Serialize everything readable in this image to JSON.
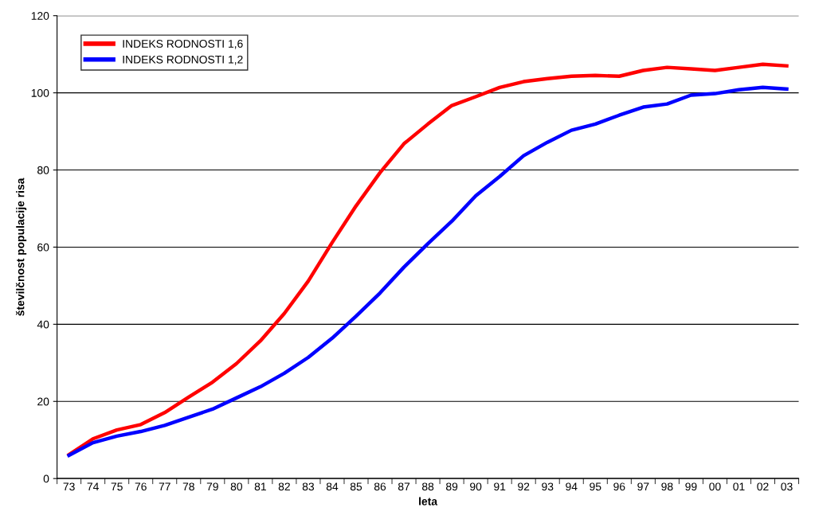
{
  "chart_data": {
    "type": "line",
    "xlabel": "leta",
    "ylabel": "številčnost populacije risa",
    "categories": [
      "73",
      "74",
      "75",
      "76",
      "77",
      "78",
      "79",
      "80",
      "81",
      "82",
      "83",
      "84",
      "85",
      "86",
      "87",
      "88",
      "89",
      "90",
      "91",
      "92",
      "93",
      "94",
      "95",
      "96",
      "97",
      "98",
      "99",
      "00",
      "01",
      "02",
      "03"
    ],
    "series": [
      {
        "name": "INDEKS RODNOSTI 1,6",
        "color": "#ff0000",
        "values": [
          6.2,
          10.3,
          12.6,
          14.0,
          17.1,
          21.1,
          25.0,
          29.8,
          35.7,
          42.8,
          51.2,
          61.2,
          70.7,
          79.3,
          86.8,
          91.9,
          96.7,
          99.0,
          101.4,
          102.9,
          103.7,
          104.3,
          104.5,
          104.3,
          105.8,
          106.6,
          106.2,
          105.8,
          106.6,
          107.4,
          107.0
        ]
      },
      {
        "name": "INDEKS RODNOSTI 1,2",
        "color": "#0000ff",
        "values": [
          6.0,
          9.3,
          11.0,
          12.2,
          13.8,
          15.9,
          18.0,
          20.9,
          23.8,
          27.3,
          31.4,
          36.4,
          42.1,
          48.1,
          54.8,
          60.9,
          66.7,
          73.3,
          78.3,
          83.7,
          87.2,
          90.3,
          91.9,
          94.2,
          96.3,
          97.1,
          99.4,
          99.8,
          100.8,
          101.4,
          101.0
        ]
      }
    ],
    "ylim": [
      0,
      120
    ],
    "yticks": [
      0,
      20,
      40,
      60,
      80,
      100,
      120
    ],
    "grid": "y",
    "legend": "top left",
    "marker": "none",
    "line_style": "solid"
  }
}
